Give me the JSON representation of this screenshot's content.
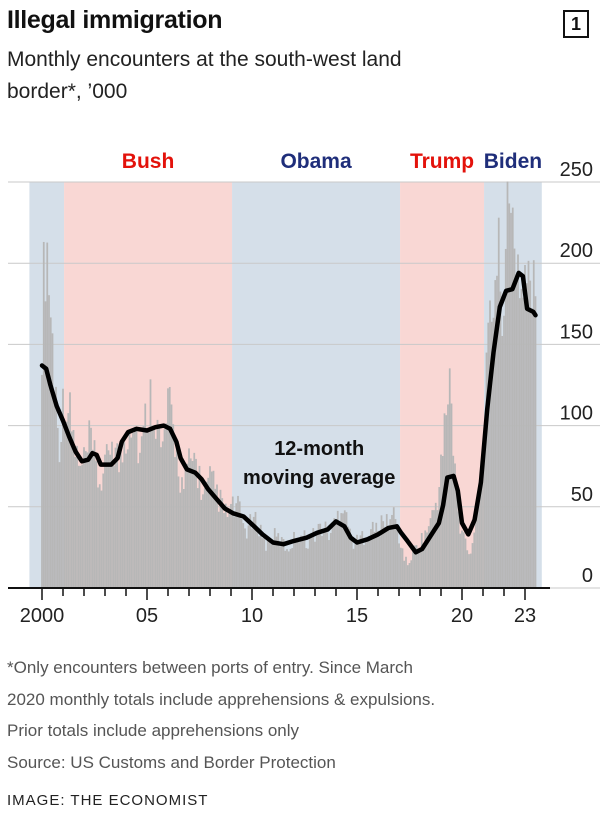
{
  "header": {
    "title": "Illegal immigration",
    "chart_number": "1",
    "subtitle": "Monthly encounters at the south-west land border*, ’000"
  },
  "footnote": {
    "lines": [
      "*Only encounters between ports of entry. Since March",
      "2020 monthly totals include apprehensions & expulsions.",
      "Prior totals include apprehensions only",
      "Source: US Customs and Border Protection"
    ]
  },
  "credit": "IMAGE: THE ECONOMIST",
  "colors": {
    "republican_shade": "#f9d7d4",
    "democrat_shade": "#d5dfe9",
    "bars": "#b7b7b7",
    "line": "#000000",
    "republican_text": "#e3120b",
    "democrat_text": "#1f2e7a"
  },
  "chart_data": {
    "type": "bar",
    "title": "Illegal immigration",
    "subtitle": "Monthly encounters at the south-west land border*, ’000",
    "xlim": [
      2000,
      2023.8
    ],
    "ylim": [
      0,
      250
    ],
    "y_axis_side": "right",
    "grid": "horizontal",
    "x_ticks": [
      {
        "value": 2000,
        "label": "2000"
      },
      {
        "value": 2005,
        "label": "05"
      },
      {
        "value": 2010,
        "label": "10"
      },
      {
        "value": 2015,
        "label": "15"
      },
      {
        "value": 2020,
        "label": "20"
      },
      {
        "value": 2023,
        "label": "23"
      }
    ],
    "y_ticks": [
      0,
      50,
      100,
      150,
      200,
      250
    ],
    "presidencies": [
      {
        "name": "Bush",
        "party": "republican",
        "start": 2001.05,
        "end": 2009.05
      },
      {
        "name": "Obama",
        "party": "democrat",
        "start": 2009.05,
        "end": 2017.05
      },
      {
        "name": "Trump",
        "party": "republican",
        "start": 2017.05,
        "end": 2021.05
      },
      {
        "name": "Biden",
        "party": "democrat",
        "start": 2021.05,
        "end": 2023.8
      }
    ],
    "series": [
      {
        "name": "12-month moving average",
        "type": "line",
        "points": [
          [
            2000.0,
            137
          ],
          [
            2000.2,
            135
          ],
          [
            2000.4,
            125
          ],
          [
            2000.7,
            112
          ],
          [
            2001.0,
            103
          ],
          [
            2001.3,
            93
          ],
          [
            2001.6,
            84
          ],
          [
            2001.9,
            78
          ],
          [
            2002.2,
            79
          ],
          [
            2002.4,
            83
          ],
          [
            2002.6,
            82
          ],
          [
            2002.8,
            76
          ],
          [
            2003.3,
            76
          ],
          [
            2003.6,
            80
          ],
          [
            2003.8,
            90
          ],
          [
            2004.1,
            96
          ],
          [
            2004.5,
            98
          ],
          [
            2005.0,
            97
          ],
          [
            2005.4,
            99
          ],
          [
            2005.8,
            100
          ],
          [
            2006.1,
            98
          ],
          [
            2006.4,
            90
          ],
          [
            2006.6,
            80
          ],
          [
            2006.9,
            73
          ],
          [
            2007.3,
            71
          ],
          [
            2007.6,
            67
          ],
          [
            2007.9,
            61
          ],
          [
            2008.3,
            55
          ],
          [
            2008.7,
            49
          ],
          [
            2009.1,
            46
          ],
          [
            2009.6,
            44
          ],
          [
            2010.1,
            38
          ],
          [
            2010.5,
            33
          ],
          [
            2011.0,
            28
          ],
          [
            2011.5,
            27
          ],
          [
            2012.0,
            29
          ],
          [
            2012.6,
            31
          ],
          [
            2013.1,
            34
          ],
          [
            2013.6,
            36
          ],
          [
            2014.0,
            41
          ],
          [
            2014.4,
            38
          ],
          [
            2014.7,
            31
          ],
          [
            2015.0,
            28
          ],
          [
            2015.5,
            30
          ],
          [
            2016.0,
            33
          ],
          [
            2016.5,
            37
          ],
          [
            2016.9,
            38
          ],
          [
            2017.1,
            34
          ],
          [
            2017.4,
            29
          ],
          [
            2017.8,
            22
          ],
          [
            2018.1,
            24
          ],
          [
            2018.5,
            32
          ],
          [
            2018.9,
            40
          ],
          [
            2019.1,
            51
          ],
          [
            2019.3,
            68
          ],
          [
            2019.6,
            69
          ],
          [
            2019.8,
            60
          ],
          [
            2020.0,
            40
          ],
          [
            2020.3,
            33
          ],
          [
            2020.6,
            42
          ],
          [
            2020.9,
            65
          ],
          [
            2021.2,
            110
          ],
          [
            2021.5,
            145
          ],
          [
            2021.8,
            173
          ],
          [
            2022.1,
            183
          ],
          [
            2022.4,
            184
          ],
          [
            2022.7,
            194
          ],
          [
            2022.9,
            192
          ],
          [
            2023.1,
            172
          ],
          [
            2023.4,
            170
          ],
          [
            2023.5,
            168
          ]
        ]
      },
      {
        "name": "",
        "type": "bar",
        "keyframes": [
          [
            2000.0,
            160
          ],
          [
            2000.2,
            220
          ],
          [
            2000.5,
            150
          ],
          [
            2000.8,
            90
          ],
          [
            2001.1,
            120
          ],
          [
            2001.4,
            100
          ],
          [
            2001.8,
            70
          ],
          [
            2002.1,
            80
          ],
          [
            2002.3,
            90
          ],
          [
            2002.7,
            65
          ],
          [
            2003.0,
            70
          ],
          [
            2003.3,
            95
          ],
          [
            2003.7,
            75
          ],
          [
            2004.0,
            95
          ],
          [
            2004.3,
            110
          ],
          [
            2004.7,
            80
          ],
          [
            2005.0,
            110
          ],
          [
            2005.3,
            120
          ],
          [
            2005.7,
            80
          ],
          [
            2006.0,
            110
          ],
          [
            2006.3,
            95
          ],
          [
            2006.7,
            60
          ],
          [
            2007.0,
            75
          ],
          [
            2007.3,
            80
          ],
          [
            2007.7,
            55
          ],
          [
            2008.0,
            65
          ],
          [
            2008.3,
            60
          ],
          [
            2008.7,
            45
          ],
          [
            2009.0,
            48
          ],
          [
            2009.3,
            50
          ],
          [
            2009.7,
            35
          ],
          [
            2010.0,
            40
          ],
          [
            2010.3,
            40
          ],
          [
            2010.7,
            26
          ],
          [
            2011.0,
            32
          ],
          [
            2011.3,
            30
          ],
          [
            2011.7,
            24
          ],
          [
            2012.0,
            30
          ],
          [
            2012.3,
            34
          ],
          [
            2012.7,
            28
          ],
          [
            2013.0,
            34
          ],
          [
            2013.3,
            38
          ],
          [
            2013.7,
            33
          ],
          [
            2014.0,
            42
          ],
          [
            2014.4,
            55
          ],
          [
            2014.7,
            30
          ],
          [
            2015.0,
            28
          ],
          [
            2015.3,
            32
          ],
          [
            2015.7,
            36
          ],
          [
            2016.0,
            36
          ],
          [
            2016.3,
            40
          ],
          [
            2016.8,
            45
          ],
          [
            2017.1,
            25
          ],
          [
            2017.4,
            14
          ],
          [
            2017.8,
            25
          ],
          [
            2018.1,
            30
          ],
          [
            2018.5,
            40
          ],
          [
            2018.9,
            60
          ],
          [
            2019.2,
            100
          ],
          [
            2019.4,
            135
          ],
          [
            2019.6,
            80
          ],
          [
            2019.9,
            35
          ],
          [
            2020.2,
            30
          ],
          [
            2020.4,
            18
          ],
          [
            2020.7,
            55
          ],
          [
            2020.9,
            70
          ],
          [
            2021.1,
            110
          ],
          [
            2021.4,
            170
          ],
          [
            2021.6,
            205
          ],
          [
            2021.9,
            185
          ],
          [
            2022.1,
            210
          ],
          [
            2022.4,
            225
          ],
          [
            2022.7,
            200
          ],
          [
            2022.9,
            175
          ],
          [
            2023.1,
            215
          ],
          [
            2023.3,
            160
          ],
          [
            2023.5,
            190
          ]
        ]
      }
    ],
    "annotations": [
      {
        "text": "12-month",
        "x": 2013.2,
        "y": 82
      },
      {
        "text": "moving average",
        "x": 2013.2,
        "y": 64
      }
    ]
  }
}
